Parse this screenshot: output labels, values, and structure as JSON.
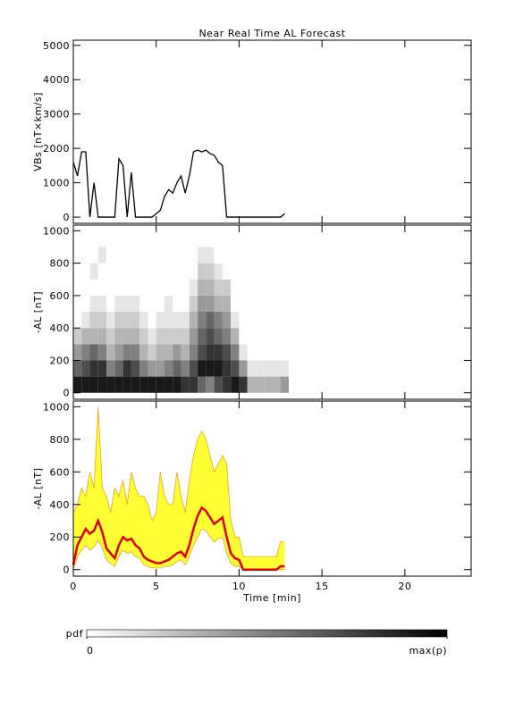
{
  "chart_data": [
    {
      "type": "line",
      "title": "Near Real Time AL Forecast",
      "ylabel": "VBs [nT×km/s]",
      "x": [
        0,
        0.25,
        0.5,
        0.75,
        1,
        1.25,
        1.5,
        1.75,
        2,
        2.25,
        2.5,
        2.75,
        3,
        3.25,
        3.5,
        3.75,
        4,
        4.25,
        4.5,
        4.75,
        5,
        5.25,
        5.5,
        5.75,
        6,
        6.25,
        6.5,
        6.75,
        7,
        7.25,
        7.5,
        7.75,
        8,
        8.25,
        8.5,
        8.75,
        9,
        9.25,
        9.5,
        9.75,
        10,
        10.25,
        10.5,
        10.75,
        11,
        11.25,
        11.5,
        11.75,
        12,
        12.25,
        12.5,
        12.75
      ],
      "values": [
        1600,
        1200,
        1900,
        1900,
        0,
        1000,
        0,
        0,
        0,
        0,
        0,
        1700,
        1500,
        0,
        1300,
        0,
        0,
        0,
        0,
        0,
        100,
        200,
        600,
        800,
        700,
        1000,
        1200,
        700,
        1200,
        1900,
        1950,
        1900,
        1950,
        1850,
        1800,
        1600,
        1500,
        0,
        0,
        0,
        0,
        0,
        0,
        0,
        0,
        0,
        0,
        0,
        0,
        0,
        0,
        100
      ],
      "color": "#000000",
      "ylim": [
        -180,
        5150
      ],
      "yticks": [
        0,
        1000,
        2000,
        3000,
        4000,
        5000
      ]
    },
    {
      "type": "heatmap",
      "ylabel": "-AL [nT]",
      "xbins": [
        0,
        0.5,
        1,
        1.5,
        2,
        2.5,
        3,
        3.5,
        4,
        4.5,
        5,
        5.5,
        6,
        6.5,
        7,
        7.5,
        8,
        8.5,
        9,
        9.5,
        10,
        10.5,
        11,
        11.5,
        12,
        12.5,
        13
      ],
      "ybins": [
        0,
        100,
        200,
        300,
        400,
        500,
        600,
        700,
        800,
        900
      ],
      "z": [
        [
          0.9,
          0.6,
          0.4,
          0.2,
          0,
          0,
          0,
          0,
          0
        ],
        [
          0.9,
          0.7,
          0.5,
          0.3,
          0.1,
          0,
          0,
          0,
          0
        ],
        [
          0.9,
          0.8,
          0.6,
          0.3,
          0.2,
          0.1,
          0,
          0.1,
          0
        ],
        [
          0.9,
          0.8,
          0.5,
          0.3,
          0.2,
          0.1,
          0,
          0,
          0.1
        ],
        [
          0.9,
          0.5,
          0.3,
          0.2,
          0.1,
          0,
          0,
          0,
          0
        ],
        [
          0.9,
          0.6,
          0.4,
          0.3,
          0.2,
          0.1,
          0,
          0,
          0
        ],
        [
          0.9,
          0.8,
          0.5,
          0.3,
          0.2,
          0.1,
          0,
          0,
          0
        ],
        [
          0.9,
          0.7,
          0.5,
          0.3,
          0.2,
          0.1,
          0,
          0,
          0
        ],
        [
          0.9,
          0.5,
          0.3,
          0.2,
          0.1,
          0,
          0,
          0,
          0
        ],
        [
          0.9,
          0.4,
          0.2,
          0.1,
          0,
          0,
          0,
          0,
          0
        ],
        [
          0.9,
          0.4,
          0.3,
          0.2,
          0.1,
          0,
          0,
          0,
          0
        ],
        [
          0.9,
          0.5,
          0.3,
          0.2,
          0.1,
          0.1,
          0,
          0,
          0
        ],
        [
          0.9,
          0.6,
          0.4,
          0.2,
          0.1,
          0,
          0,
          0,
          0
        ],
        [
          0.8,
          0.5,
          0.3,
          0.2,
          0.1,
          0,
          0,
          0,
          0
        ],
        [
          0.8,
          0.7,
          0.5,
          0.4,
          0.3,
          0.2,
          0.1,
          0,
          0
        ],
        [
          0.6,
          0.9,
          0.7,
          0.6,
          0.5,
          0.4,
          0.3,
          0.2,
          0.1
        ],
        [
          0.5,
          0.9,
          0.8,
          0.7,
          0.6,
          0.4,
          0.3,
          0.2,
          0.1
        ],
        [
          0.7,
          0.9,
          0.8,
          0.6,
          0.5,
          0.3,
          0.2,
          0.1,
          0
        ],
        [
          0.8,
          0.8,
          0.7,
          0.5,
          0.4,
          0.3,
          0.2,
          0,
          0
        ],
        [
          0.9,
          0.7,
          0.5,
          0.3,
          0.1,
          0,
          0,
          0,
          0
        ],
        [
          0.8,
          0.4,
          0.1,
          0,
          0,
          0,
          0,
          0,
          0
        ],
        [
          0.3,
          0.1,
          0,
          0,
          0,
          0,
          0,
          0,
          0
        ],
        [
          0.3,
          0.1,
          0,
          0,
          0,
          0,
          0,
          0,
          0
        ],
        [
          0.3,
          0.1,
          0,
          0,
          0,
          0,
          0,
          0,
          0
        ],
        [
          0.3,
          0.1,
          0,
          0,
          0,
          0,
          0,
          0,
          0
        ],
        [
          0.4,
          0.1,
          0,
          0,
          0,
          0,
          0,
          0,
          0
        ]
      ],
      "ylim": [
        -40,
        1035
      ],
      "yticks": [
        0,
        200,
        400,
        600,
        800,
        1000
      ],
      "zlim": [
        0,
        1
      ],
      "colorbar_title": "pdf",
      "zticks": [
        0,
        {
          "value": 1,
          "label": "max(p)"
        }
      ]
    },
    {
      "type": "line",
      "ylabel": "-AL [nT]",
      "xlabel": "Time [min]",
      "x": [
        0,
        0.25,
        0.5,
        0.75,
        1,
        1.25,
        1.5,
        1.75,
        2,
        2.25,
        2.5,
        2.75,
        3,
        3.25,
        3.5,
        3.75,
        4,
        4.25,
        4.5,
        4.75,
        5,
        5.25,
        5.5,
        5.75,
        6,
        6.25,
        6.5,
        6.75,
        7,
        7.25,
        7.5,
        7.75,
        8,
        8.25,
        8.5,
        8.75,
        9,
        9.25,
        9.5,
        9.75,
        10,
        10.25,
        10.5,
        10.75,
        11,
        11.25,
        11.5,
        11.75,
        12,
        12.25,
        12.5,
        12.75
      ],
      "values": [
        30,
        150,
        200,
        250,
        220,
        240,
        300,
        230,
        130,
        100,
        70,
        150,
        200,
        180,
        190,
        150,
        130,
        80,
        60,
        50,
        40,
        40,
        50,
        60,
        80,
        100,
        110,
        80,
        150,
        250,
        330,
        380,
        360,
        320,
        280,
        300,
        320,
        200,
        100,
        70,
        60,
        0,
        0,
        0,
        0,
        0,
        0,
        0,
        0,
        0,
        20,
        20
      ],
      "band_upper": [
        350,
        400,
        500,
        450,
        600,
        500,
        1000,
        500,
        450,
        350,
        500,
        450,
        550,
        400,
        600,
        500,
        450,
        450,
        400,
        300,
        350,
        600,
        450,
        400,
        400,
        600,
        450,
        350,
        550,
        700,
        800,
        850,
        800,
        700,
        600,
        650,
        700,
        650,
        300,
        200,
        200,
        80,
        80,
        80,
        80,
        80,
        80,
        80,
        80,
        80,
        170,
        170
      ],
      "band_lower": [
        0,
        80,
        120,
        150,
        120,
        140,
        180,
        130,
        60,
        40,
        20,
        80,
        120,
        100,
        110,
        80,
        70,
        30,
        20,
        10,
        10,
        10,
        20,
        20,
        30,
        50,
        60,
        30,
        80,
        150,
        200,
        250,
        240,
        200,
        170,
        190,
        200,
        100,
        40,
        20,
        20,
        0,
        0,
        0,
        0,
        0,
        0,
        0,
        0,
        0,
        0,
        0
      ],
      "color": "#e00000",
      "band_color": "#ffff33",
      "band_edge_color": "#f0a020",
      "xlim": [
        0,
        24
      ],
      "xticks": [
        0,
        5,
        10,
        15,
        20
      ],
      "ylim": [
        -40,
        1035
      ],
      "yticks": [
        0,
        200,
        400,
        600,
        800,
        1000
      ]
    }
  ]
}
